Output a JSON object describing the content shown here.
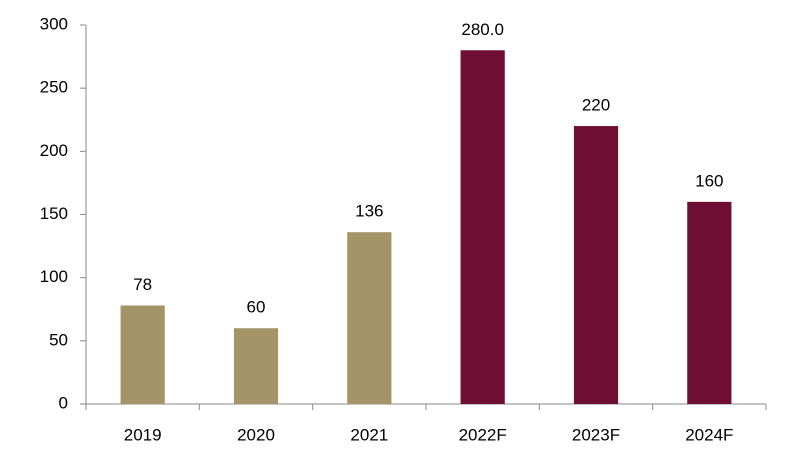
{
  "chart_data": {
    "type": "bar",
    "categories": [
      "2019",
      "2020",
      "2021",
      "2022F",
      "2023F",
      "2024F"
    ],
    "values": [
      78,
      60,
      136,
      280,
      220,
      160
    ],
    "value_labels": [
      "78",
      "60",
      "136",
      "280.0",
      "220",
      "160"
    ],
    "colors": [
      "#a59467",
      "#a59467",
      "#a59467",
      "#6e0e32",
      "#6e0e32",
      "#6e0e32"
    ],
    "ylim": [
      0,
      300
    ],
    "yticks": [
      0,
      50,
      100,
      150,
      200,
      250,
      300
    ],
    "grid": false
  }
}
